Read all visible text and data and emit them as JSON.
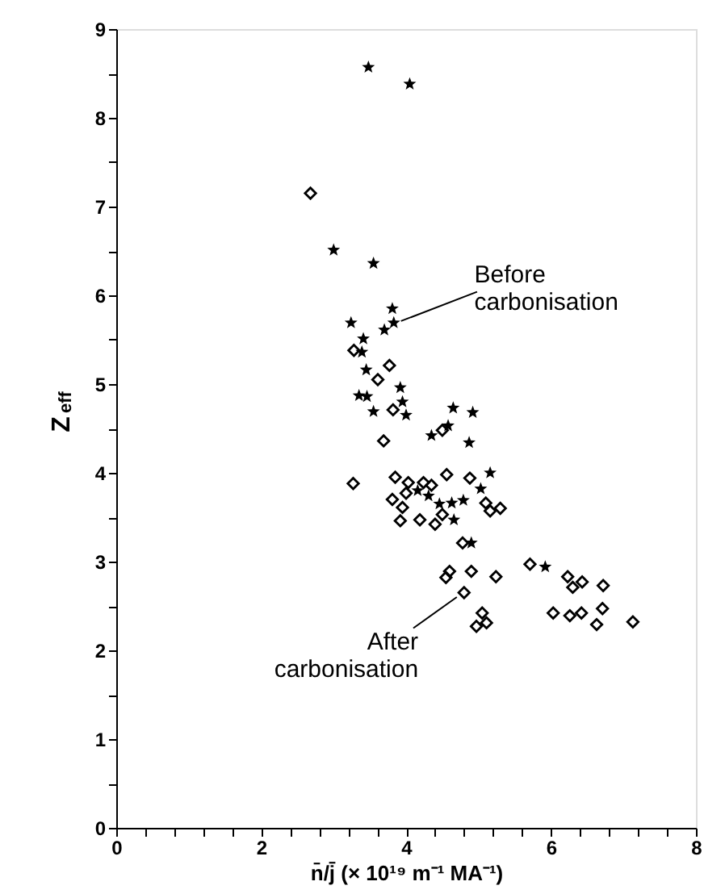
{
  "chart_data": {
    "type": "scatter",
    "xlabel": "n̄/j̄ (× 10¹⁹ m⁻¹ MA⁻¹)",
    "ylabel": "Z$_{eff}$",
    "xlim": [
      0,
      8
    ],
    "ylim": [
      0,
      9
    ],
    "xticks": [
      0,
      {
        "value": 0.4,
        "label": null
      },
      {
        "value": 0.8,
        "label": null
      },
      {
        "value": 1.2,
        "label": null
      },
      {
        "value": 1.6,
        "label": null
      },
      2,
      {
        "value": 2.4,
        "label": null
      },
      {
        "value": 2.8,
        "label": null
      },
      {
        "value": 3.2,
        "label": null
      },
      {
        "value": 3.6,
        "label": null
      },
      4,
      {
        "value": 4.4,
        "label": null
      },
      {
        "value": 4.8,
        "label": null
      },
      {
        "value": 5.2,
        "label": null
      },
      {
        "value": 5.6,
        "label": null
      },
      6,
      {
        "value": 6.4,
        "label": null
      },
      {
        "value": 6.8,
        "label": null
      },
      {
        "value": 7.2,
        "label": null
      },
      {
        "value": 7.6,
        "label": null
      },
      8
    ],
    "yticks": [
      0,
      {
        "value": 0.5,
        "label": null
      },
      1,
      {
        "value": 1.5,
        "label": null
      },
      2,
      {
        "value": 2.5,
        "label": null
      },
      3,
      {
        "value": 3.5,
        "label": null
      },
      4,
      {
        "value": 4.5,
        "label": null
      },
      5,
      {
        "value": 5.5,
        "label": null
      },
      6,
      {
        "value": 6.5,
        "label": null
      },
      7,
      {
        "value": 7.5,
        "label": null
      },
      8,
      {
        "value": 8.5,
        "label": null
      },
      9
    ],
    "grid": false,
    "series": [
      {
        "color": "#000000",
        "marker": "star",
        "x": [
          3.48,
          4.05,
          3.0,
          3.55,
          3.81,
          3.83,
          3.7,
          3.24,
          3.41,
          3.39,
          3.45,
          3.92,
          3.95,
          4.0,
          3.35,
          3.46,
          3.55,
          4.65,
          4.92,
          4.35,
          4.58,
          4.87,
          5.16,
          5.03,
          4.16,
          4.31,
          4.46,
          4.63,
          4.79,
          4.66,
          4.9,
          5.92
        ],
        "values": [
          8.57,
          8.38,
          6.51,
          6.36,
          5.85,
          5.69,
          5.61,
          5.69,
          5.51,
          5.36,
          5.16,
          4.96,
          4.8,
          4.65,
          4.87,
          4.86,
          4.69,
          4.73,
          4.68,
          4.42,
          4.53,
          4.34,
          4.0,
          3.82,
          3.8,
          3.74,
          3.65,
          3.66,
          3.69,
          3.47,
          3.21,
          2.94
        ]
      },
      {
        "color": "#000000",
        "marker": "diamond",
        "x": [
          2.68,
          3.28,
          3.77,
          3.61,
          3.82,
          3.69,
          4.5,
          3.27,
          3.85,
          3.81,
          3.95,
          3.92,
          4.0,
          4.03,
          4.19,
          4.24,
          4.35,
          4.4,
          4.5,
          4.56,
          4.88,
          5.1,
          5.16,
          5.3,
          4.78,
          4.6,
          4.55,
          4.8,
          4.9,
          5.24,
          5.05,
          4.97,
          5.11,
          5.71,
          6.23,
          6.3,
          6.43,
          6.72,
          6.03,
          6.26,
          6.42,
          6.71,
          6.63,
          7.13
        ],
        "values": [
          7.15,
          5.38,
          5.21,
          5.05,
          4.71,
          4.36,
          4.48,
          3.88,
          3.95,
          3.7,
          3.61,
          3.46,
          3.77,
          3.89,
          3.47,
          3.89,
          3.86,
          3.42,
          3.53,
          3.98,
          3.94,
          3.66,
          3.57,
          3.6,
          3.21,
          2.89,
          2.82,
          2.65,
          2.89,
          2.83,
          2.42,
          2.27,
          2.31,
          2.97,
          2.83,
          2.71,
          2.77,
          2.73,
          2.42,
          2.39,
          2.42,
          2.47,
          2.29,
          2.32
        ]
      }
    ],
    "annotations": [
      {
        "text": "Before carbonisation",
        "x": 3.83,
        "y": 5.69
      },
      {
        "text": "After carbonisation",
        "x": 4.8,
        "y": 2.65
      }
    ]
  }
}
